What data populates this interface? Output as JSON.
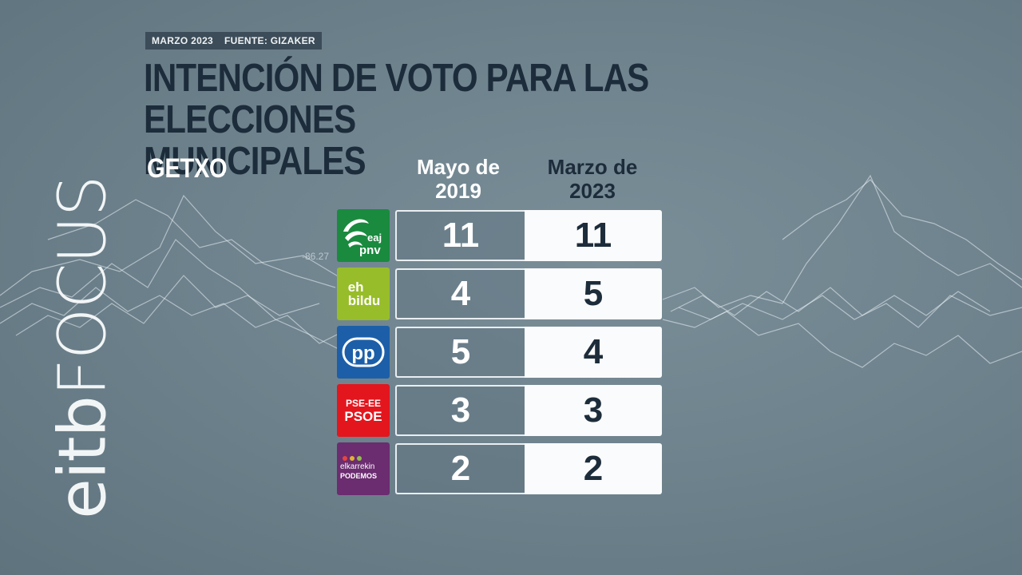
{
  "header": {
    "date": "MARZO 2023",
    "source": "FUENTE: GIZAKER",
    "title_line1": "INTENCIÓN DE VOTO PARA LAS ELECCIONES",
    "title_line2": "MUNICIPALES",
    "subtitle": "GETXO"
  },
  "brand": {
    "part1": "eitb",
    "part2": "FOCUS"
  },
  "columns": {
    "col1": "Mayo de 2019",
    "col1_l1": "Mayo de",
    "col1_l2": "2019",
    "col2": "Marzo de 2023",
    "col2_l1": "Marzo de",
    "col2_l2": "2023"
  },
  "background_annotation": "-86.27",
  "parties": [
    {
      "name": "EAJ-PNV",
      "logo_text_a": "eaj",
      "logo_text_b": "pnv",
      "color": "#1a8a3f",
      "v2019": "11",
      "v2023": "11"
    },
    {
      "name": "EH Bildu",
      "logo_text_a": "eh",
      "logo_text_b": "bildu",
      "color": "#97bd2a",
      "v2019": "4",
      "v2023": "5"
    },
    {
      "name": "PP",
      "logo_text_a": "pp",
      "color": "#1c5fa8",
      "v2019": "5",
      "v2023": "4"
    },
    {
      "name": "PSE-EE PSOE",
      "logo_text_a": "PSE-EE",
      "logo_text_b": "PSOE",
      "color": "#e3161e",
      "v2019": "3",
      "v2023": "3"
    },
    {
      "name": "Elkarrekin Podemos",
      "logo_text_a": "elkarrekin",
      "logo_text_b": "PODEMOS",
      "color": "#6b2c70",
      "v2019": "2",
      "v2023": "2"
    }
  ],
  "colors": {
    "title": "#1d2c3a",
    "background": "#6f838e",
    "meta_bg": "#3c4c58"
  }
}
